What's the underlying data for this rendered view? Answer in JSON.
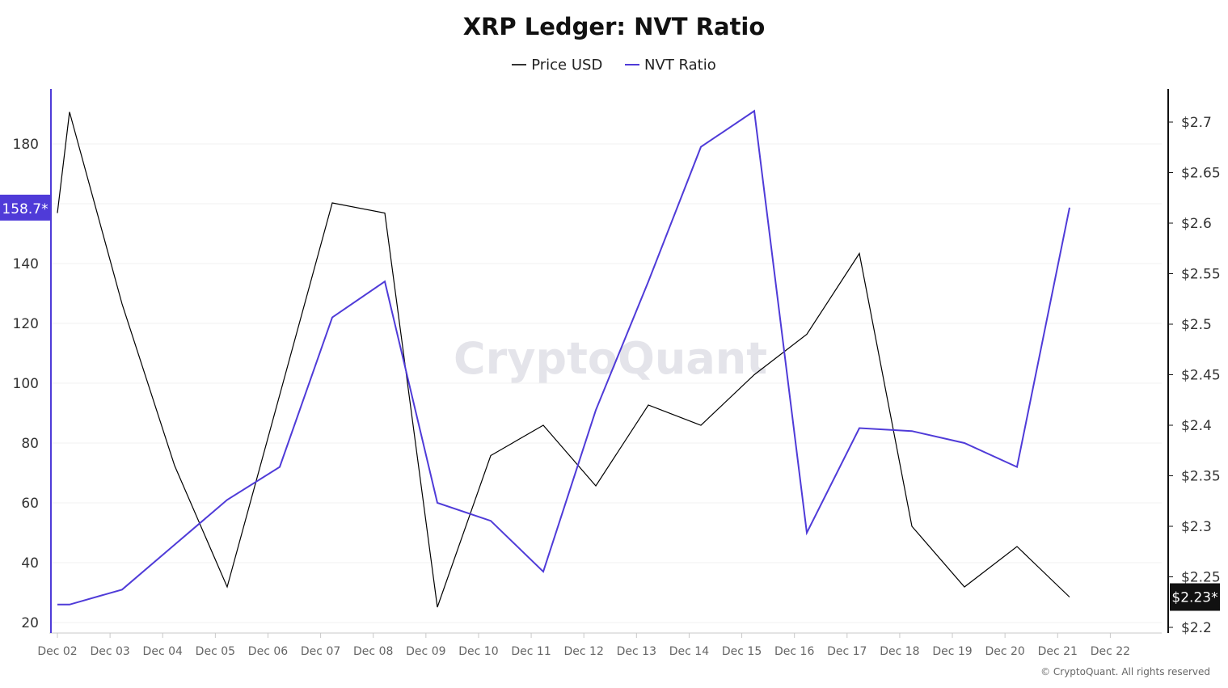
{
  "chart_data": {
    "type": "line",
    "title": "XRP Ledger: NVT Ratio",
    "x": [
      "Dec 02",
      "Dec 02",
      "Dec 03",
      "Dec 04",
      "Dec 05",
      "Dec 06",
      "Dec 07",
      "Dec 08",
      "Dec 09",
      "Dec 10",
      "Dec 11",
      "Dec 12",
      "Dec 13",
      "Dec 14",
      "Dec 15",
      "Dec 16",
      "Dec 17",
      "Dec 18",
      "Dec 19",
      "Dec 20",
      "Dec 21"
    ],
    "x_ticks": [
      "Dec 02",
      "Dec 03",
      "Dec 04",
      "Dec 05",
      "Dec 06",
      "Dec 07",
      "Dec 08",
      "Dec 09",
      "Dec 10",
      "Dec 11",
      "Dec 12",
      "Dec 13",
      "Dec 14",
      "Dec 15",
      "Dec 16",
      "Dec 17",
      "Dec 18",
      "Dec 19",
      "Dec 20",
      "Dec 21",
      "Dec 22"
    ],
    "series": [
      {
        "name": "Price USD",
        "axis": "right",
        "color": "#000000",
        "values": [
          2.61,
          2.71,
          2.52,
          2.36,
          2.24,
          2.43,
          2.62,
          2.61,
          2.22,
          2.37,
          2.4,
          2.34,
          2.42,
          2.4,
          2.45,
          2.49,
          2.57,
          2.3,
          2.24,
          2.28,
          2.23
        ]
      },
      {
        "name": "NVT Ratio",
        "axis": "left",
        "color": "#4f3bd8",
        "values": [
          26,
          26,
          31,
          46,
          61,
          72,
          122,
          134,
          60,
          54,
          37,
          91,
          134,
          179,
          191,
          50,
          85,
          84,
          80,
          72,
          158.7
        ]
      }
    ],
    "left_axis": {
      "ticks": [
        "20",
        "40",
        "60",
        "80",
        "100",
        "120",
        "140",
        "180"
      ],
      "tick_values": [
        20,
        40,
        60,
        80,
        100,
        120,
        140,
        180
      ],
      "ylim": [
        17,
        198
      ],
      "current_badge": "158.7*",
      "current_value": 158.7
    },
    "right_axis": {
      "ticks": [
        "$2.2",
        "$2.25",
        "$2.3",
        "$2.35",
        "$2.4",
        "$2.45",
        "$2.5",
        "$2.55",
        "$2.6",
        "$2.65",
        "$2.7"
      ],
      "tick_values": [
        2.2,
        2.25,
        2.3,
        2.35,
        2.4,
        2.45,
        2.5,
        2.55,
        2.6,
        2.65,
        2.7
      ],
      "ylim": [
        2.188,
        2.753
      ],
      "current_badge": "$2.23*",
      "current_value": 2.23
    },
    "legend_position": "top-center",
    "grid": true
  },
  "legend": [
    {
      "label": "Price USD",
      "color": "#333333"
    },
    {
      "label": "NVT Ratio",
      "color": "#4f3bd8"
    }
  ],
  "watermark": "CryptoQuant",
  "footer": "© CryptoQuant. All rights reserved"
}
